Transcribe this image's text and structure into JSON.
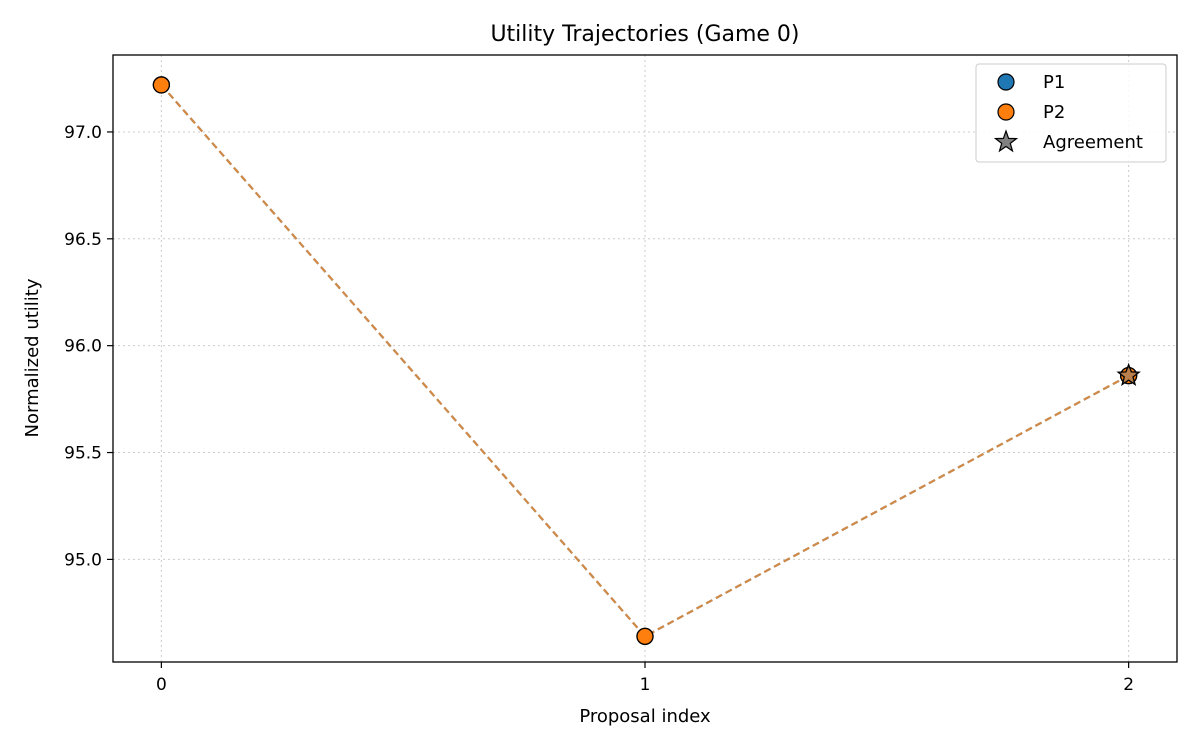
{
  "chart_data": {
    "type": "line",
    "title": "Utility Trajectories (Game 0)",
    "xlabel": "Proposal index",
    "ylabel": "Normalized utility",
    "x": [
      0,
      1,
      2
    ],
    "xticks": [
      0,
      1,
      2
    ],
    "xtick_labels": [
      "0",
      "1",
      "2"
    ],
    "xlim": [
      -0.1,
      2.1
    ],
    "yticks": [
      95.0,
      95.5,
      96.0,
      96.5,
      97.0
    ],
    "ytick_labels": [
      "95.0",
      "95.5",
      "96.0",
      "96.5",
      "97.0"
    ],
    "ylim": [
      94.52,
      97.36
    ],
    "grid": true,
    "series": [
      {
        "name": "P1",
        "values": [
          97.22,
          94.64,
          95.86
        ],
        "color": "#1f77b4"
      },
      {
        "name": "P2",
        "values": [
          97.22,
          94.64,
          95.86
        ],
        "color": "#ff7f0e"
      }
    ],
    "line_color": "#c8884c",
    "agreement": {
      "name": "Agreement",
      "x": 2,
      "y": 95.86,
      "color": "#808080"
    },
    "legend": {
      "position": "top-right",
      "entries": [
        {
          "label": "P1",
          "marker": "circle",
          "color": "#1f77b4"
        },
        {
          "label": "P2",
          "marker": "circle",
          "color": "#ff7f0e"
        },
        {
          "label": "Agreement",
          "marker": "star",
          "color": "#808080"
        }
      ]
    }
  }
}
